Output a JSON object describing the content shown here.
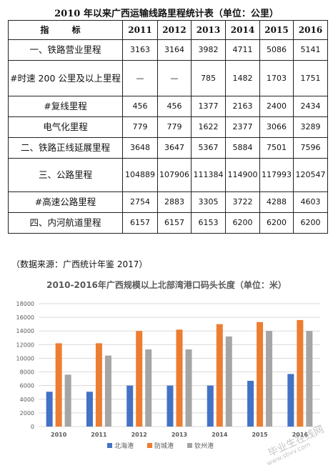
{
  "table": {
    "title": "2010 年以来广西运输线路里程统计表（单位：公里）",
    "header": [
      "指 标",
      "2011",
      "2012",
      "2013",
      "2014",
      "2015",
      "2016"
    ],
    "rows": [
      {
        "label": "一、铁路营业里程",
        "values": [
          "3163",
          "3164",
          "3982",
          "4711",
          "5086",
          "5141"
        ]
      },
      {
        "label": "#时速 200 公里及以上里程",
        "values": [
          "—",
          "—",
          "785",
          "1482",
          "1703",
          "1751"
        ]
      },
      {
        "label": "#复线里程",
        "values": [
          "456",
          "456",
          "1377",
          "2163",
          "2400",
          "2434"
        ]
      },
      {
        "label": "电气化里程",
        "values": [
          "779",
          "779",
          "1622",
          "2377",
          "3066",
          "3289"
        ]
      },
      {
        "label": "二、铁路正线延展里程",
        "values": [
          "3648",
          "3647",
          "5367",
          "5884",
          "7501",
          "7596"
        ]
      },
      {
        "label": "三、公路里程",
        "values": [
          "104889",
          "107906",
          "111384",
          "114900",
          "117993",
          "120547"
        ]
      },
      {
        "label": "#高速公路里程",
        "values": [
          "2754",
          "2883",
          "3305",
          "3722",
          "4288",
          "4603"
        ]
      },
      {
        "label": "四、内河航道里程",
        "values": [
          "6157",
          "6157",
          "6153",
          "6200",
          "6200",
          "6200"
        ]
      }
    ],
    "source": "（数据来源：广西统计年鉴 2017）"
  },
  "watermark": {
    "text": "毕业生在线网",
    "sub": "www.sbvv.com"
  },
  "colors": {
    "series": [
      "#4472c4",
      "#ed7d31",
      "#a5a5a5"
    ],
    "grid": "#d9d9d9",
    "text": "#595959"
  },
  "chart_data": {
    "type": "bar",
    "title": "2010-2016年广西规模以上北部湾港口码头长度（单位：米）",
    "categories": [
      "2010",
      "2011",
      "2012",
      "2013",
      "2014",
      "2015",
      "2016"
    ],
    "series": [
      {
        "name": "北海港",
        "values": [
          5100,
          5100,
          6000,
          6000,
          6000,
          6700,
          7700
        ]
      },
      {
        "name": "防城港",
        "values": [
          12200,
          12200,
          14000,
          14200,
          15000,
          15300,
          15600
        ]
      },
      {
        "name": "钦州港",
        "values": [
          7600,
          10400,
          11300,
          11300,
          13200,
          14000,
          14000
        ]
      }
    ],
    "ylim": [
      0,
      18000
    ],
    "yticks": [
      "0",
      "2000",
      "4000",
      "6000",
      "8000",
      "10000",
      "12000",
      "14000",
      "16000",
      "18000"
    ],
    "grid": true,
    "legend_position": "bottom"
  }
}
